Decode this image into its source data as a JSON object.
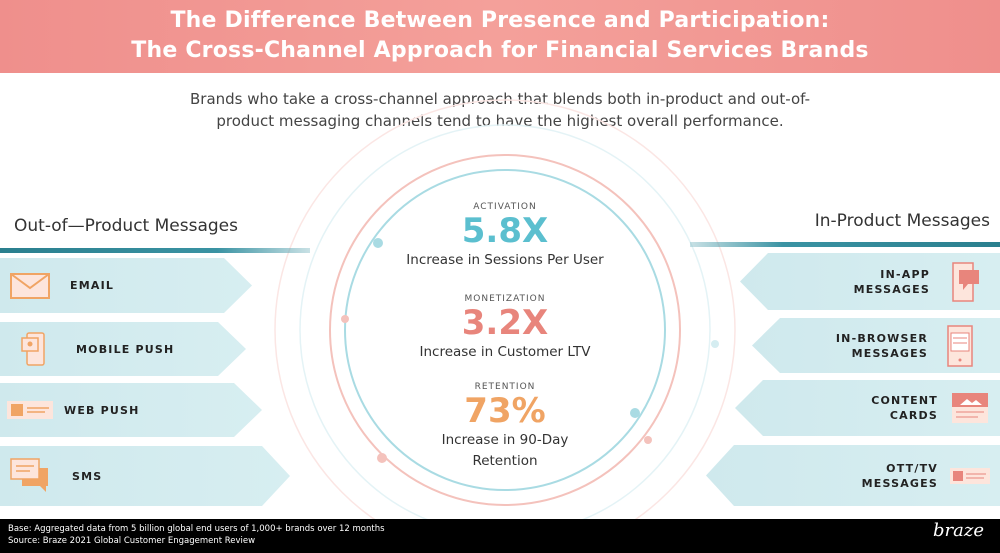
{
  "header": {
    "title_line1": "The Difference Between Presence and Participation:",
    "title_line2": "The Cross-Channel Approach for Financial Services Brands"
  },
  "subtitle": "Brands who take a cross-channel approach that blends both in-product and out-of-product messaging channels tend to have the highest overall performance.",
  "left": {
    "heading": "Out-of—Product Messages",
    "items": [
      {
        "label": "EMAIL",
        "icon": "envelope-icon"
      },
      {
        "label": "MOBILE PUSH",
        "icon": "phone-notification-icon"
      },
      {
        "label": "WEB PUSH",
        "icon": "web-push-icon"
      },
      {
        "label": "SMS",
        "icon": "chat-bubbles-icon"
      }
    ]
  },
  "right": {
    "heading": "In-Product Messages",
    "items": [
      {
        "line1": "IN-APP",
        "line2": "MESSAGES",
        "icon": "phone-message-icon"
      },
      {
        "line1": "IN-BROWSER",
        "line2": "MESSAGES",
        "icon": "browser-icon"
      },
      {
        "line1": "CONTENT",
        "line2": "CARDS",
        "icon": "image-card-icon"
      },
      {
        "line1": "OTT/TV",
        "line2": "MESSAGES",
        "icon": "tv-banner-icon"
      }
    ]
  },
  "stats": [
    {
      "label": "ACTIVATION",
      "value": "5.8X",
      "desc": "Increase in Sessions Per User",
      "color": "#5bbfcf"
    },
    {
      "label": "MONETIZATION",
      "value": "3.2X",
      "desc": "Increase in Customer LTV",
      "color": "#e8857c"
    },
    {
      "label": "RETENTION",
      "value": "73%",
      "desc": "Increase in 90-Day Retention",
      "color": "#f0a464"
    }
  ],
  "footer": {
    "base": "Base: Aggregated data from 5 billion global end users of 1,000+ brands over 12 months",
    "source": "Source: Braze 2021 Global Customer Engagement Review",
    "logo": "braze"
  },
  "colors": {
    "header": "#ef8f8c",
    "teal": "#2a7f8e",
    "banner": "#cfe9ed",
    "orange_icon": "#f0a464",
    "pink_icon": "#e8857c"
  }
}
